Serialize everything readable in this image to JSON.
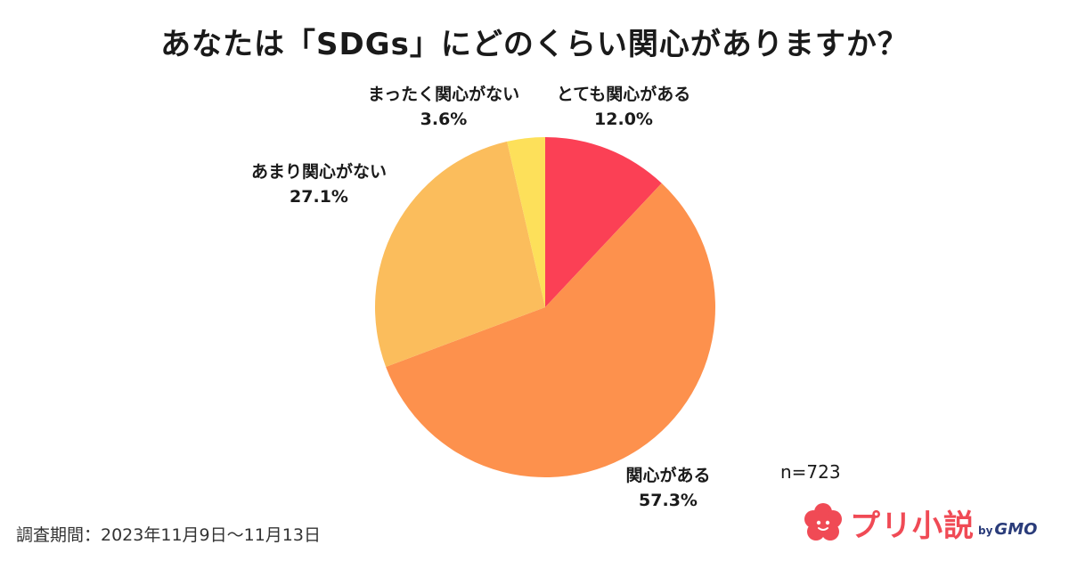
{
  "title": "あなたは「SDGs」にどのくらい関心がありますか？",
  "sample_size": "n=723",
  "survey_period": "調査期間：2023年11月9日〜11月13日",
  "logo": {
    "name": "プリ小説",
    "by": "by",
    "brand": "GMO",
    "icon": "flower-blob-icon",
    "color": "#f04a55",
    "brand_color": "#2a3c7a"
  },
  "chart_data": {
    "type": "pie",
    "title": "あなたは「SDGs」にどのくらい関心がありますか？",
    "start": "12 o'clock",
    "direction": "clockwise",
    "slices": [
      {
        "label": "とても関心がある",
        "value": 12.0,
        "value_label": "12.0%",
        "color": "#fb4055"
      },
      {
        "label": "関心がある",
        "value": 57.3,
        "value_label": "57.3%",
        "color": "#fd914d"
      },
      {
        "label": "あまり関心がない",
        "value": 27.1,
        "value_label": "27.1%",
        "color": "#fbbd5c"
      },
      {
        "label": "まったく関心がない",
        "value": 3.6,
        "value_label": "3.6%",
        "color": "#fde05a"
      }
    ]
  }
}
